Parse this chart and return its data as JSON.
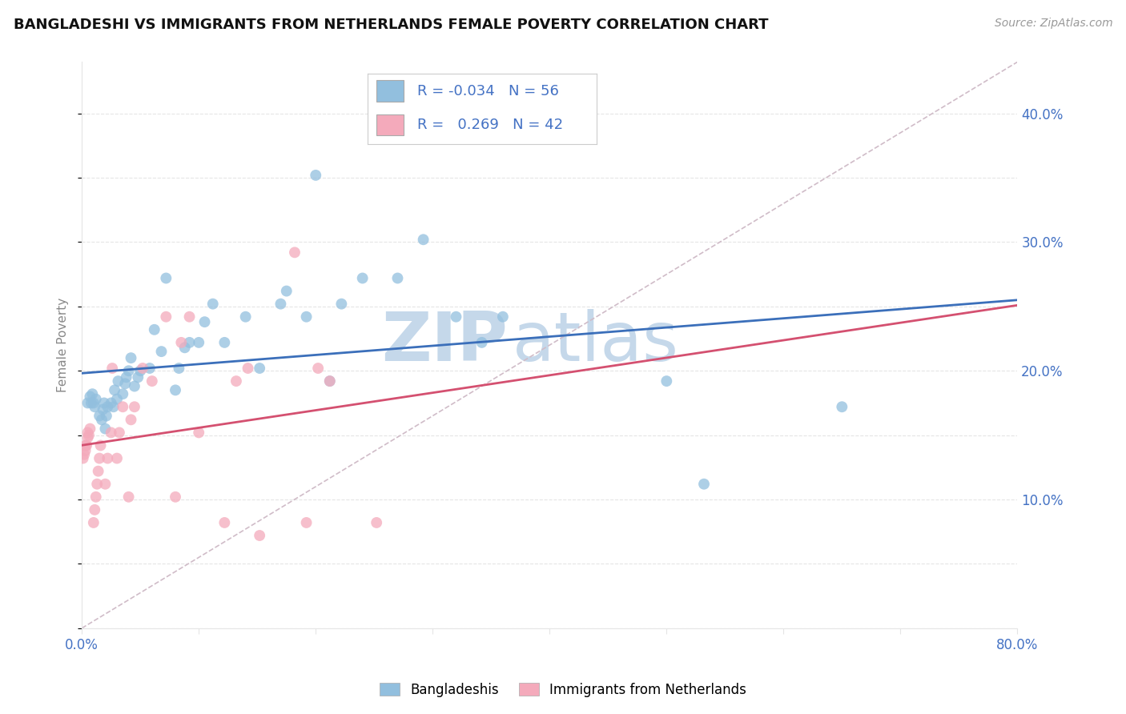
{
  "title": "BANGLADESHI VS IMMIGRANTS FROM NETHERLANDS FEMALE POVERTY CORRELATION CHART",
  "source": "Source: ZipAtlas.com",
  "ylabel": "Female Poverty",
  "xlim": [
    0.0,
    0.8
  ],
  "ylim": [
    0.0,
    0.44
  ],
  "xticks": [
    0.0,
    0.1,
    0.2,
    0.3,
    0.4,
    0.5,
    0.6,
    0.7,
    0.8
  ],
  "yticks_right": [
    0.1,
    0.2,
    0.3,
    0.4
  ],
  "ytick_labels_right": [
    "10.0%",
    "20.0%",
    "30.0%",
    "40.0%"
  ],
  "legend_r1": "-0.034",
  "legend_n1": "56",
  "legend_r2": "0.269",
  "legend_n2": "42",
  "color_blue": "#92bfde",
  "color_blue_line": "#3b6fba",
  "color_pink": "#f4aabb",
  "color_pink_line": "#d45070",
  "watermark_zip": "ZIP",
  "watermark_atlas": "atlas",
  "watermark_color": "#c5d8ea",
  "background_color": "#ffffff",
  "grid_color": "#e5e5e5",
  "ref_line_color": "#d0bcc8",
  "title_color": "#111111",
  "axis_color": "#4472c4",
  "blue_scatter_x": [
    0.005,
    0.007,
    0.008,
    0.009,
    0.01,
    0.011,
    0.012,
    0.015,
    0.017,
    0.018,
    0.019,
    0.02,
    0.021,
    0.022,
    0.025,
    0.027,
    0.028,
    0.03,
    0.031,
    0.035,
    0.037,
    0.038,
    0.04,
    0.042,
    0.045,
    0.048,
    0.05,
    0.058,
    0.062,
    0.068,
    0.072,
    0.08,
    0.083,
    0.088,
    0.092,
    0.1,
    0.105,
    0.112,
    0.122,
    0.14,
    0.152,
    0.17,
    0.175,
    0.192,
    0.2,
    0.212,
    0.222,
    0.24,
    0.27,
    0.292,
    0.32,
    0.342,
    0.36,
    0.5,
    0.532,
    0.65
  ],
  "blue_scatter_y": [
    0.175,
    0.18,
    0.175,
    0.182,
    0.175,
    0.172,
    0.178,
    0.165,
    0.162,
    0.17,
    0.175,
    0.155,
    0.165,
    0.172,
    0.175,
    0.172,
    0.185,
    0.178,
    0.192,
    0.182,
    0.19,
    0.195,
    0.2,
    0.21,
    0.188,
    0.195,
    0.2,
    0.202,
    0.232,
    0.215,
    0.272,
    0.185,
    0.202,
    0.218,
    0.222,
    0.222,
    0.238,
    0.252,
    0.222,
    0.242,
    0.202,
    0.252,
    0.262,
    0.242,
    0.352,
    0.192,
    0.252,
    0.272,
    0.272,
    0.302,
    0.242,
    0.222,
    0.242,
    0.192,
    0.112,
    0.172
  ],
  "pink_scatter_x": [
    0.001,
    0.002,
    0.003,
    0.003,
    0.004,
    0.005,
    0.005,
    0.006,
    0.007,
    0.01,
    0.011,
    0.012,
    0.013,
    0.014,
    0.015,
    0.016,
    0.02,
    0.022,
    0.025,
    0.026,
    0.03,
    0.032,
    0.035,
    0.04,
    0.042,
    0.045,
    0.052,
    0.06,
    0.072,
    0.08,
    0.085,
    0.092,
    0.1,
    0.122,
    0.132,
    0.142,
    0.152,
    0.182,
    0.192,
    0.202,
    0.212,
    0.252
  ],
  "pink_scatter_y": [
    0.132,
    0.135,
    0.138,
    0.142,
    0.142,
    0.148,
    0.152,
    0.15,
    0.155,
    0.082,
    0.092,
    0.102,
    0.112,
    0.122,
    0.132,
    0.142,
    0.112,
    0.132,
    0.152,
    0.202,
    0.132,
    0.152,
    0.172,
    0.102,
    0.162,
    0.172,
    0.202,
    0.192,
    0.242,
    0.102,
    0.222,
    0.242,
    0.152,
    0.082,
    0.192,
    0.202,
    0.072,
    0.292,
    0.082,
    0.202,
    0.192,
    0.082
  ]
}
